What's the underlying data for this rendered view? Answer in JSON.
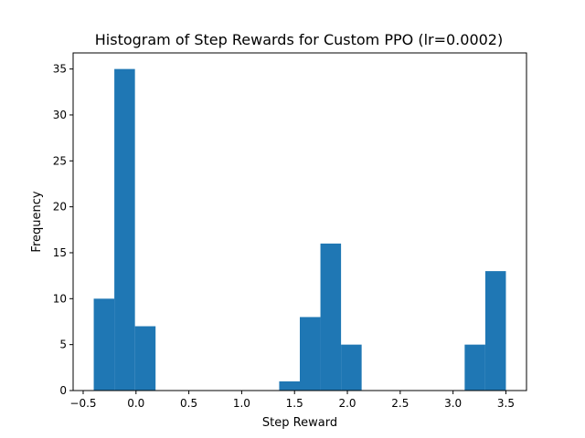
{
  "chart_data": {
    "type": "bar",
    "title": "Histogram of Step Rewards for Custom PPO (lr=0.0002)",
    "xlabel": "Step Reward",
    "ylabel": "Frequency",
    "xlim": [
      -0.595,
      3.695
    ],
    "ylim": [
      0,
      36.75
    ],
    "bin_width": 0.195,
    "bins": [
      {
        "x0": -0.4,
        "x1": -0.205,
        "count": 10
      },
      {
        "x0": -0.205,
        "x1": -0.01,
        "count": 35
      },
      {
        "x0": -0.01,
        "x1": 0.185,
        "count": 7
      },
      {
        "x0": 1.355,
        "x1": 1.55,
        "count": 1
      },
      {
        "x0": 1.55,
        "x1": 1.745,
        "count": 8
      },
      {
        "x0": 1.745,
        "x1": 1.94,
        "count": 16
      },
      {
        "x0": 1.94,
        "x1": 2.135,
        "count": 5
      },
      {
        "x0": 3.11,
        "x1": 3.305,
        "count": 5
      },
      {
        "x0": 3.305,
        "x1": 3.5,
        "count": 13
      }
    ],
    "xticks": [
      -0.5,
      0.0,
      0.5,
      1.0,
      1.5,
      2.0,
      2.5,
      3.0,
      3.5
    ],
    "xtick_labels": [
      "−0.5",
      "0.0",
      "0.5",
      "1.0",
      "1.5",
      "2.0",
      "2.5",
      "3.0",
      "3.5"
    ],
    "yticks": [
      0,
      5,
      10,
      15,
      20,
      25,
      30,
      35
    ],
    "ytick_labels": [
      "0",
      "5",
      "10",
      "15",
      "20",
      "25",
      "30",
      "35"
    ],
    "grid": false,
    "bar_color": "#1f77b4"
  }
}
